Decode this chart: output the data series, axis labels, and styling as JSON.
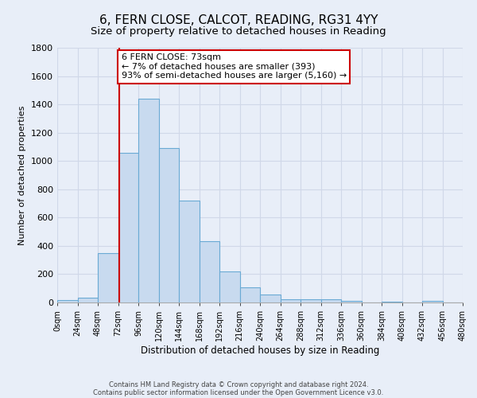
{
  "title1": "6, FERN CLOSE, CALCOT, READING, RG31 4YY",
  "title2": "Size of property relative to detached houses in Reading",
  "xlabel": "Distribution of detached houses by size in Reading",
  "ylabel": "Number of detached properties",
  "bin_edges": [
    0,
    24,
    48,
    72,
    96,
    120,
    144,
    168,
    192,
    216,
    240,
    264,
    288,
    312,
    336,
    360,
    384,
    408,
    432,
    456,
    480
  ],
  "bar_heights": [
    15,
    35,
    350,
    1055,
    1440,
    1090,
    720,
    435,
    220,
    105,
    55,
    25,
    20,
    20,
    10,
    0,
    5,
    0,
    10,
    0
  ],
  "bar_color": "#c8daef",
  "bar_edge_color": "#6aaad4",
  "property_size": 73,
  "vline_color": "#cc0000",
  "annotation_line1": "6 FERN CLOSE: 73sqm",
  "annotation_line2": "← 7% of detached houses are smaller (393)",
  "annotation_line3": "93% of semi-detached houses are larger (5,160) →",
  "annotation_box_color": "#cc0000",
  "annotation_box_bg": "#ffffff",
  "ylim": [
    0,
    1800
  ],
  "yticks": [
    0,
    200,
    400,
    600,
    800,
    1000,
    1200,
    1400,
    1600,
    1800
  ],
  "xtick_labels": [
    "0sqm",
    "24sqm",
    "48sqm",
    "72sqm",
    "96sqm",
    "120sqm",
    "144sqm",
    "168sqm",
    "192sqm",
    "216sqm",
    "240sqm",
    "264sqm",
    "288sqm",
    "312sqm",
    "336sqm",
    "360sqm",
    "384sqm",
    "408sqm",
    "432sqm",
    "456sqm",
    "480sqm"
  ],
  "footer1": "Contains HM Land Registry data © Crown copyright and database right 2024.",
  "footer2": "Contains public sector information licensed under the Open Government Licence v3.0.",
  "bg_color": "#e8eef8",
  "plot_bg_color": "#e8eef8",
  "grid_color": "#d0d8e8",
  "title1_fontsize": 11,
  "title2_fontsize": 9.5,
  "ylabel_fontsize": 8,
  "xlabel_fontsize": 8.5,
  "annotation_fontsize": 8,
  "footer_fontsize": 6
}
